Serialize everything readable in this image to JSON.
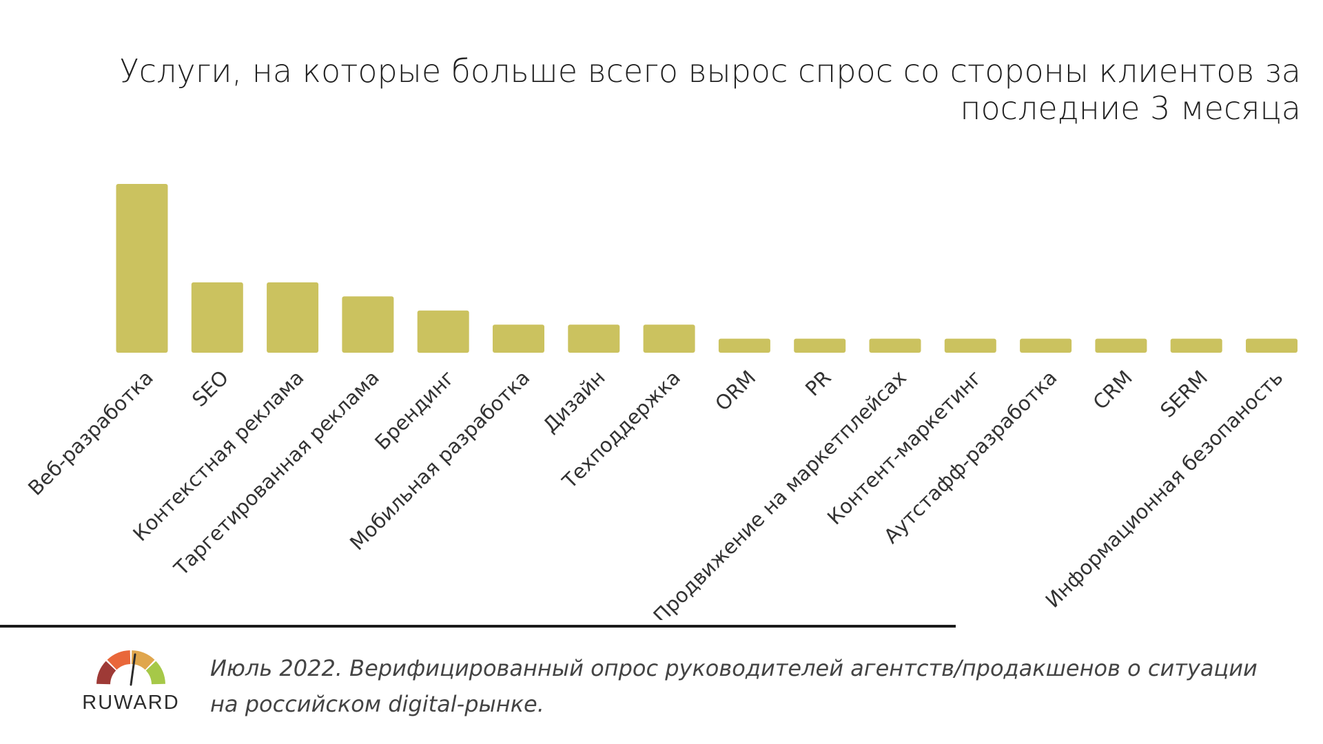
{
  "chart_data": {
    "type": "bar",
    "title": "Услуги, на которые больше всего вырос спрос со стороны клиентов за последние 3 месяца",
    "title_lines": [
      "Услуги, на которые больше всего вырос спрос со стороны клиентов за",
      "последние 3 месяца"
    ],
    "categories": [
      "Веб-разработка",
      "SEO",
      "Контекстная реклама",
      "Таргетированная реклама",
      "Брендинг",
      "Мобильная разработка",
      "Дизайн",
      "Техподдержка",
      "ORM",
      "PR",
      "Продвижение на маркетплейсах",
      "Контент-маркетинг",
      "Аутстафф-разработка",
      "CRM",
      "SERM",
      "Информационная безопаность"
    ],
    "values": [
      12,
      5,
      5,
      4,
      3,
      2,
      2,
      2,
      1,
      1,
      1,
      1,
      1,
      1,
      1,
      1
    ],
    "ylim": [
      0,
      12
    ],
    "bar_color": "#cbc25f",
    "grid": false,
    "legend": "none",
    "xlabel": "",
    "ylabel": ""
  },
  "footer": {
    "logo_text": "RUWARD",
    "logo_colors": [
      "#9e3a36",
      "#e9673a",
      "#e0a64d",
      "#a6c848"
    ],
    "note_lines": [
      "Июль 2022. Верифицированный опрос руководителей агентств/продакшенов о ситуации",
      "на российском digital-рынке."
    ]
  }
}
